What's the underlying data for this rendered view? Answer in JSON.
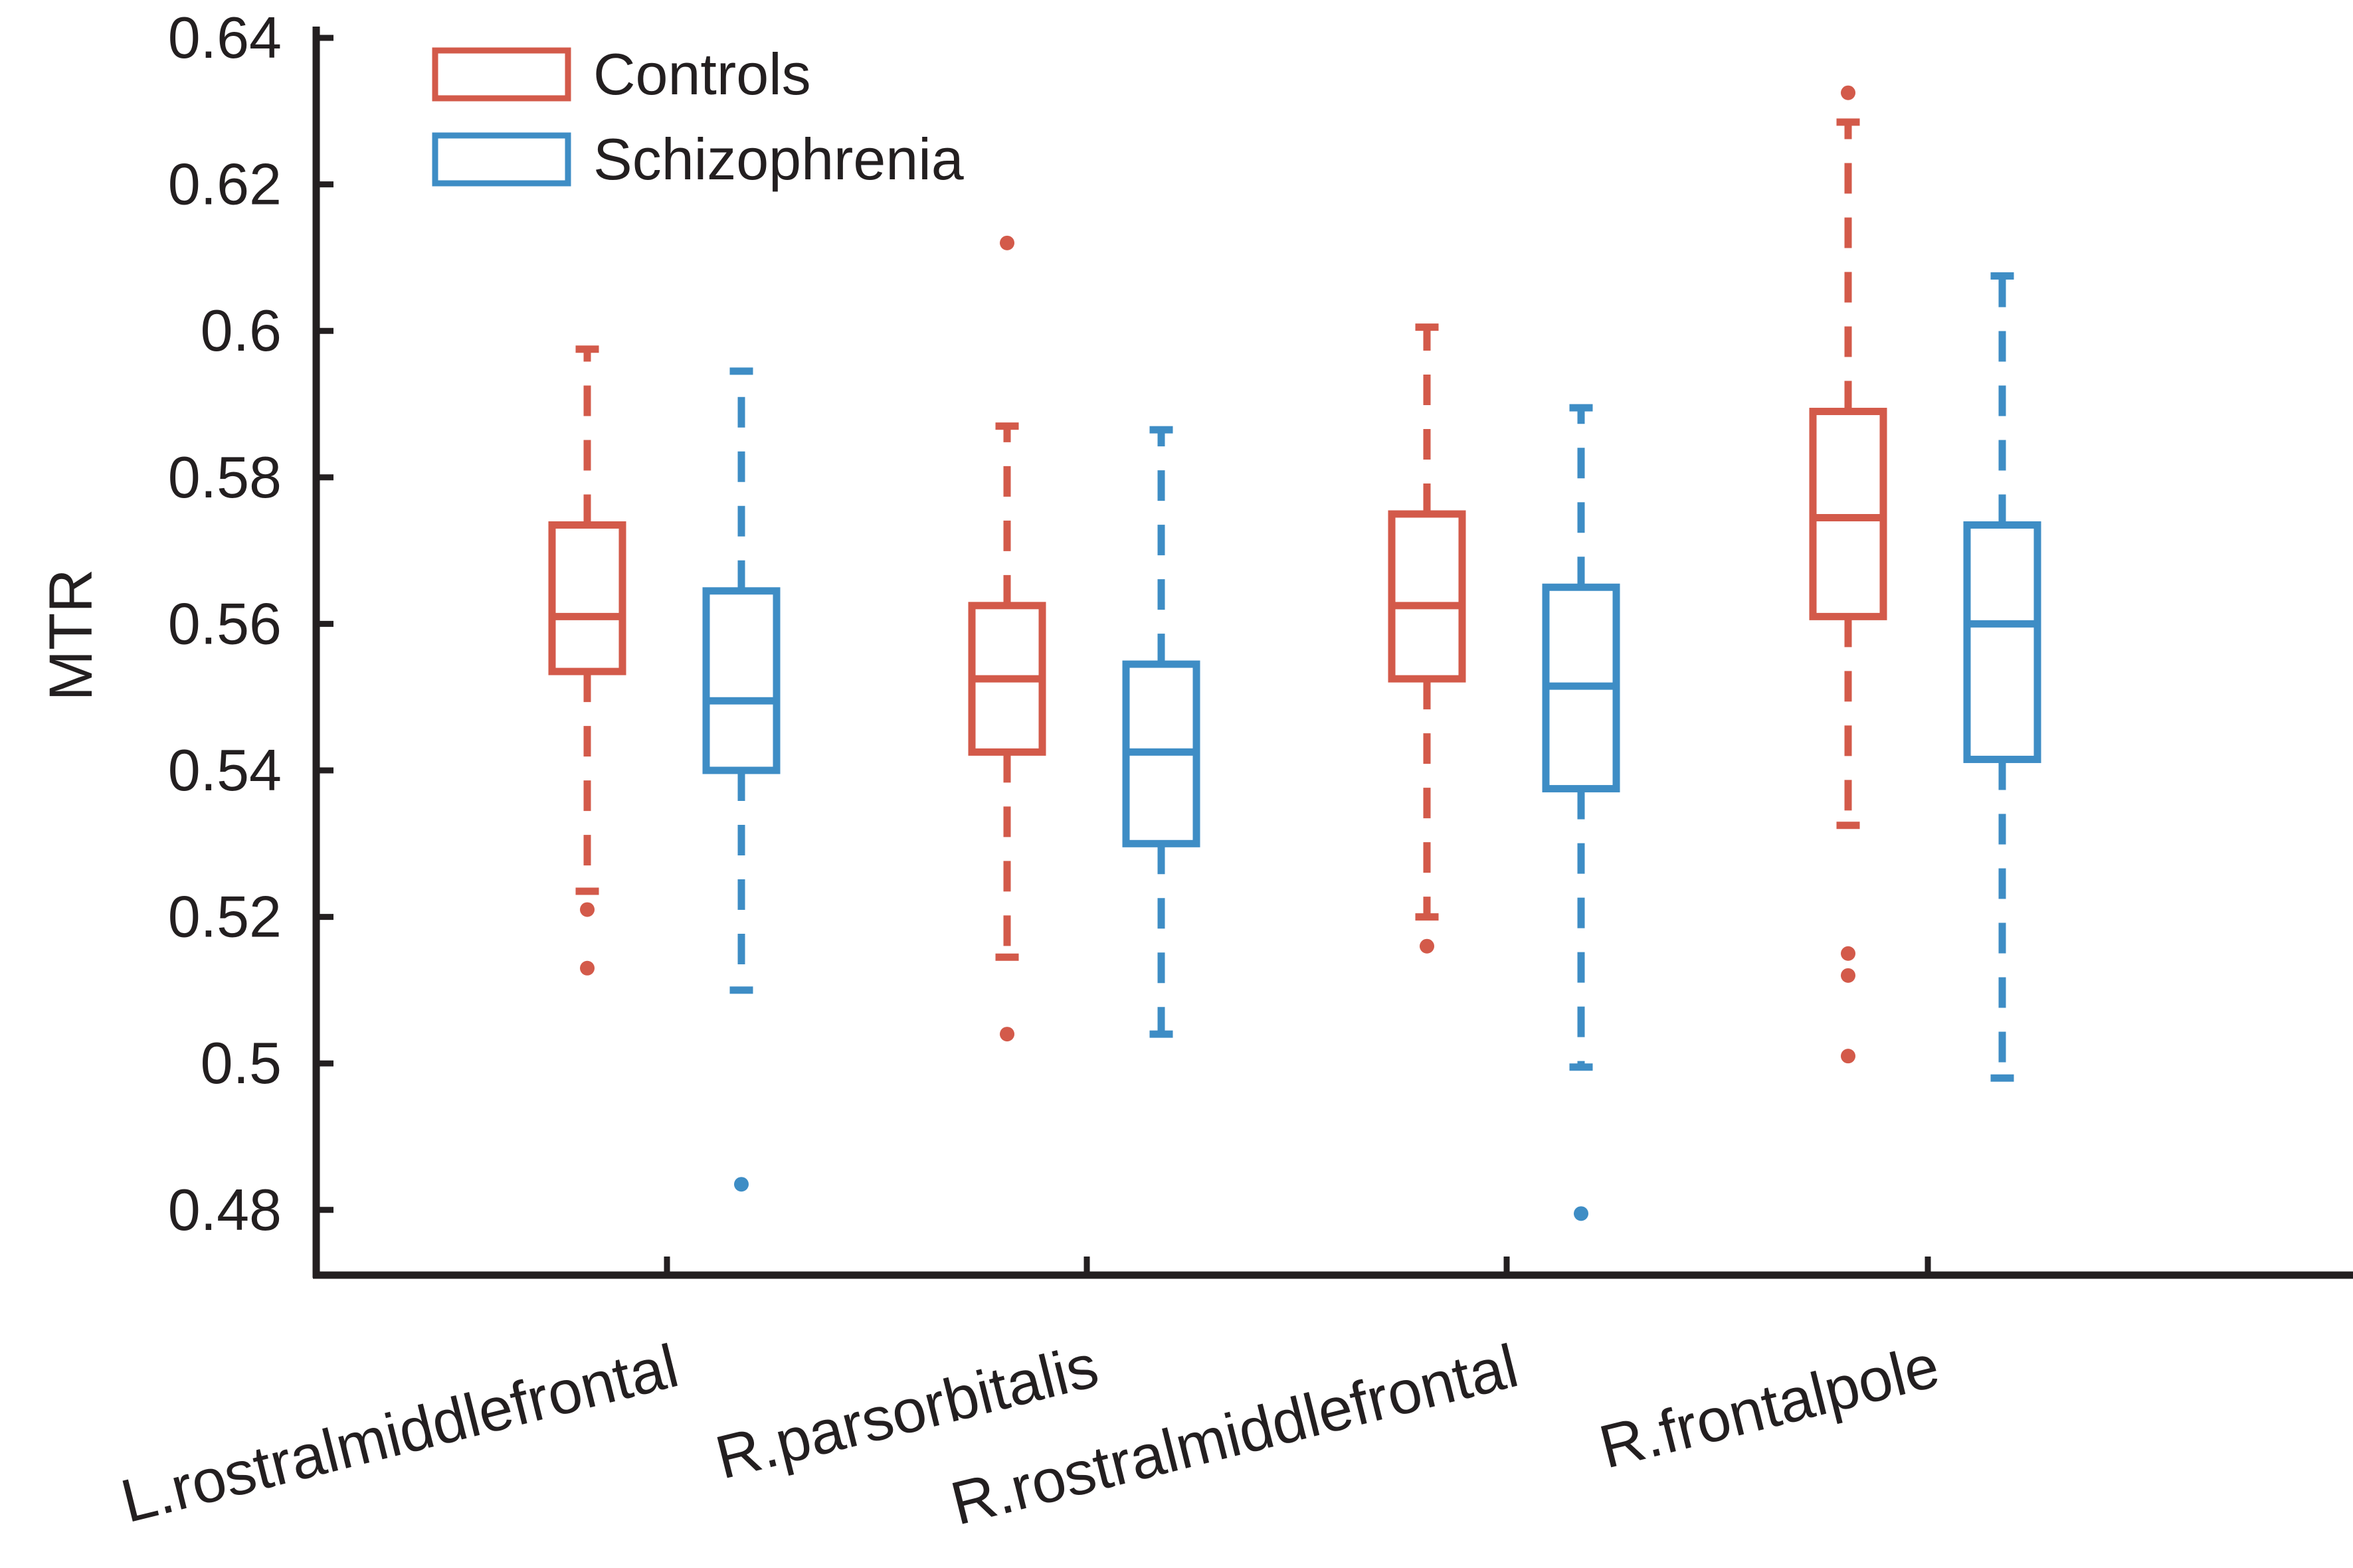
{
  "chart_data": {
    "type": "box",
    "ylabel": "MTR",
    "xlabel": "",
    "ylim": [
      0.47,
      0.64
    ],
    "yticks": [
      0.48,
      0.5,
      0.52,
      0.54,
      0.56,
      0.58,
      0.6,
      0.62,
      0.64
    ],
    "ytick_labels": [
      "0.48",
      "0.5",
      "0.52",
      "0.54",
      "0.56",
      "0.58",
      "0.6",
      "0.62",
      "0.64"
    ],
    "categories": [
      "L.rostralmiddlefrontal",
      "R.parsorbitalis",
      "R.rostralmiddlefrontal",
      "R.frontalpole"
    ],
    "legend_position": "top-left",
    "series": [
      {
        "name": "Controls",
        "color": "#d35a4a",
        "boxes": [
          {
            "whisker_low": 0.5235,
            "q1": 0.5535,
            "median": 0.561,
            "q3": 0.5735,
            "whisker_high": 0.5975,
            "outliers": [
              0.521,
              0.513
            ]
          },
          {
            "whisker_low": 0.5145,
            "q1": 0.5425,
            "median": 0.5525,
            "q3": 0.5625,
            "whisker_high": 0.587,
            "outliers": [
              0.612,
              0.504
            ]
          },
          {
            "whisker_low": 0.52,
            "q1": 0.5525,
            "median": 0.5625,
            "q3": 0.575,
            "whisker_high": 0.6005,
            "outliers": [
              0.516
            ]
          },
          {
            "whisker_low": 0.5325,
            "q1": 0.561,
            "median": 0.5745,
            "q3": 0.589,
            "whisker_high": 0.6285,
            "outliers": [
              0.6325,
              0.515,
              0.512,
              0.501
            ]
          }
        ]
      },
      {
        "name": "Schizophrenia",
        "color": "#3e8dc5",
        "boxes": [
          {
            "whisker_low": 0.51,
            "q1": 0.54,
            "median": 0.5495,
            "q3": 0.5645,
            "whisker_high": 0.5945,
            "outliers": [
              0.4835
            ]
          },
          {
            "whisker_low": 0.504,
            "q1": 0.53,
            "median": 0.5425,
            "q3": 0.5545,
            "whisker_high": 0.5865,
            "outliers": []
          },
          {
            "whisker_low": 0.4995,
            "q1": 0.5375,
            "median": 0.5515,
            "q3": 0.565,
            "whisker_high": 0.5895,
            "outliers": [
              0.4795
            ]
          },
          {
            "whisker_low": 0.498,
            "q1": 0.5415,
            "median": 0.56,
            "q3": 0.5735,
            "whisker_high": 0.6075,
            "outliers": []
          }
        ]
      }
    ]
  }
}
